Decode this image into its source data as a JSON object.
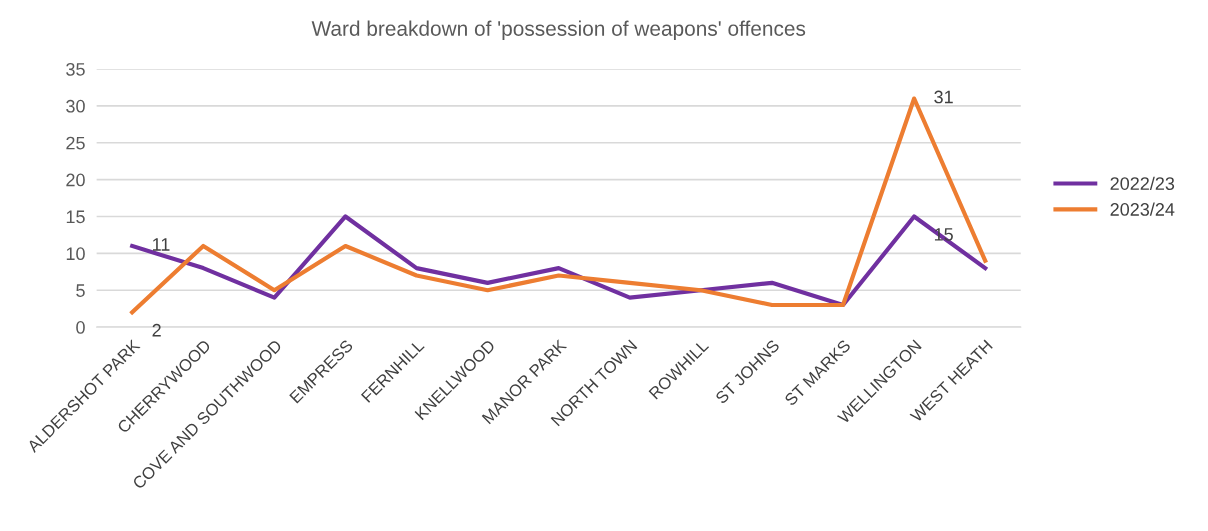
{
  "chart_data": {
    "type": "line",
    "title": "Ward breakdown of 'possession of weapons' offences",
    "categories": [
      "ALDERSHOT PARK",
      "CHERRYWOOD",
      "COVE AND SOUTHWOOD",
      "EMPRESS",
      "FERNHILL",
      "KNELLWOOD",
      "MANOR PARK",
      "NORTH TOWN",
      "ROWHILL",
      "ST JOHNS",
      "ST MARKS",
      "WELLINGTON",
      "WEST HEATH"
    ],
    "series": [
      {
        "name": "2022/23",
        "color": "#7030a0",
        "values": [
          11,
          8,
          4,
          15,
          8,
          6,
          8,
          4,
          5,
          6,
          3,
          15,
          8
        ],
        "value_labels": [
          "11",
          null,
          null,
          null,
          null,
          null,
          null,
          null,
          null,
          null,
          null,
          "15",
          null
        ]
      },
      {
        "name": "2023/24",
        "color": "#ed7d31",
        "values": [
          2,
          11,
          5,
          11,
          7,
          5,
          7,
          6,
          5,
          3,
          3,
          31,
          9
        ],
        "value_labels": [
          "2",
          null,
          null,
          null,
          null,
          null,
          null,
          null,
          null,
          null,
          null,
          "31",
          null
        ]
      }
    ],
    "ylim": [
      0,
      35
    ],
    "yticks": [
      0,
      5,
      10,
      15,
      20,
      25,
      30,
      35
    ],
    "grid": "y",
    "legend": "right",
    "marker": "none",
    "line_style": "solid"
  }
}
